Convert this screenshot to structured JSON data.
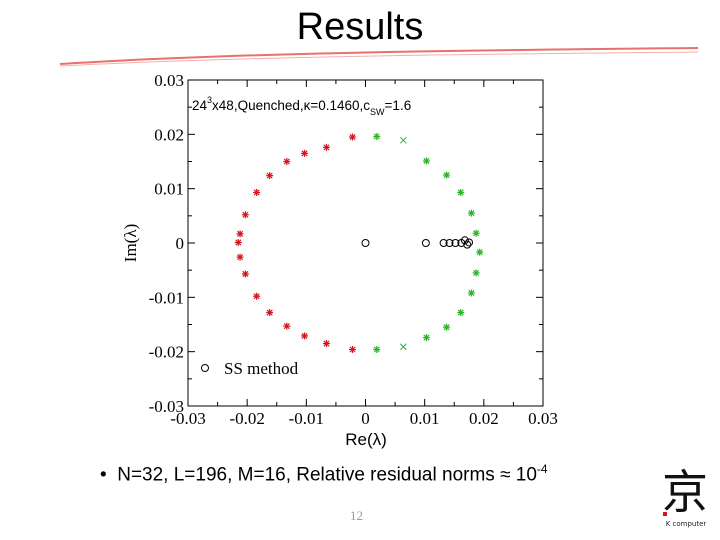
{
  "slide": {
    "title": "Results",
    "bullet_prefix": "•",
    "bullet_text": "N=32, L=196, M=16, Relative residual norms ≈ 10",
    "bullet_exp": "-4",
    "page_number": "12"
  },
  "logo": {
    "glyph": "京",
    "caption": "K computer"
  },
  "colors": {
    "red": "#d4141e",
    "green": "#2ab52a",
    "black": "#000000",
    "rule": "#e8716d"
  },
  "chart_data": {
    "type": "scatter",
    "title": "",
    "annotation": {
      "prefix": "24",
      "sup": "3",
      "mid": "x48,Quenched,κ=0.1460,c",
      "sub": "SW",
      "suffix": "=1.6"
    },
    "xlabel": "Re(λ)",
    "ylabel": "Im(λ)",
    "xlim": [
      -0.03,
      0.03
    ],
    "ylim": [
      -0.03,
      0.03
    ],
    "xticks": [
      -0.03,
      -0.02,
      -0.01,
      0,
      0.01,
      0.02,
      0.03
    ],
    "xtick_labels": [
      "-0.03",
      "-0.02",
      "-0.01",
      "0",
      "0.01",
      "0.02",
      "0.03"
    ],
    "yticks": [
      -0.03,
      -0.02,
      -0.01,
      0,
      0.01,
      0.02,
      0.03
    ],
    "ytick_labels": [
      "-0.03",
      "-0.02",
      "-0.01",
      "0",
      "0.01",
      "0.02",
      "0.03"
    ],
    "legend": {
      "label": "SS method",
      "placement": "bottom-left"
    },
    "series": [
      {
        "name": "",
        "marker": "star",
        "color": "#d4141e",
        "x": [
          -0.0022,
          -0.0066,
          -0.0103,
          -0.0133,
          -0.0162,
          -0.0184,
          -0.0203,
          -0.0212,
          -0.0215,
          -0.0212,
          -0.0203,
          -0.0184,
          -0.0162,
          -0.0133,
          -0.0103,
          -0.0066,
          -0.0022
        ],
        "y": [
          0.0195,
          0.0176,
          0.0165,
          0.015,
          0.0124,
          0.0093,
          0.0052,
          0.0017,
          0.0001,
          -0.0026,
          -0.0057,
          -0.0098,
          -0.0128,
          -0.0153,
          -0.0171,
          -0.0185,
          -0.0196
        ]
      },
      {
        "name": "",
        "marker": "star",
        "color": "#2ab52a",
        "x": [
          0.0019,
          0.0103,
          0.0137,
          0.0161,
          0.0179,
          0.0187,
          0.0193,
          0.0187,
          0.0179,
          0.0161,
          0.0137,
          0.0103,
          0.0019
        ],
        "y": [
          0.0196,
          0.0151,
          0.0125,
          0.0093,
          0.0055,
          0.0018,
          -0.0017,
          -0.0055,
          -0.0092,
          -0.0128,
          -0.0155,
          -0.0174,
          -0.0196
        ]
      },
      {
        "name": "SS method",
        "marker": "circle",
        "color": "#000000",
        "x": [
          0.0,
          0.0102,
          0.0132,
          0.0142,
          0.0152,
          0.0162,
          0.0168,
          0.0172,
          0.0175
        ],
        "y": [
          0.0,
          0.0,
          0.0,
          0.0,
          0.0,
          0.0,
          0.0005,
          -0.0003,
          0.0001
        ]
      },
      {
        "name": "",
        "marker": "x",
        "color": "#2ab52a",
        "x": [
          0.0064,
          0.0064
        ],
        "y": [
          0.0189,
          -0.0191
        ]
      }
    ]
  }
}
